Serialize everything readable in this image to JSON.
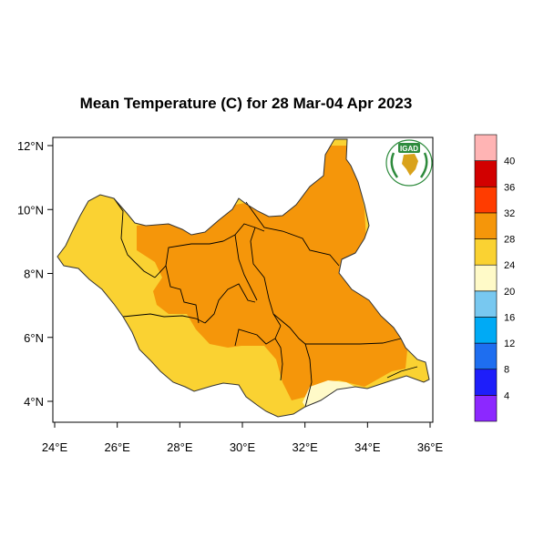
{
  "title": "Mean Temperature (C) for 28 Mar-04 Apr 2023",
  "logo": {
    "text": "IGAD",
    "emblem": "africa-map-laurel"
  },
  "map": {
    "region": "South Sudan",
    "lon_range": [
      24,
      36
    ],
    "lat_range": [
      3.2,
      12.5
    ],
    "x_ticks": [
      "24°E",
      "26°E",
      "28°E",
      "30°E",
      "32°E",
      "34°E",
      "36°E"
    ],
    "y_ticks": [
      "4°N",
      "6°N",
      "8°N",
      "10°N",
      "12°N"
    ]
  },
  "colorbar": {
    "labels": [
      "4",
      "8",
      "12",
      "16",
      "20",
      "24",
      "28",
      "32",
      "36",
      "40"
    ],
    "colors": [
      "#8c28ff",
      "#1e1efa",
      "#1e6ef0",
      "#00aaf5",
      "#78c8f0",
      "#fffac8",
      "#fad232",
      "#f5960a",
      "#ff3c00",
      "#d20000",
      "#ffb4b4"
    ]
  },
  "legend_meaning": {
    "24-28": "#fad232",
    "28-32": "#f5960a",
    "20-24": "#fffac8",
    "16-20": "#78c8f0"
  }
}
